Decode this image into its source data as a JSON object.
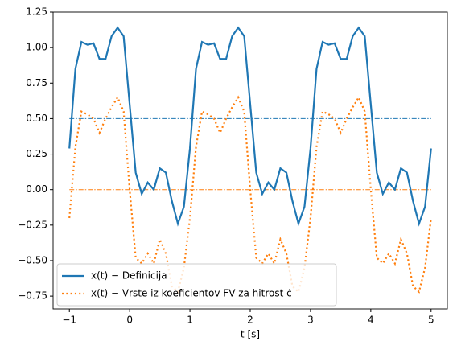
{
  "chart_data": {
    "type": "line",
    "xlabel": "t [s]",
    "x": [
      -1,
      -0.9,
      -0.8,
      -0.7,
      -0.6,
      -0.5,
      -0.4,
      -0.3,
      -0.2,
      -0.1,
      0,
      0.1,
      0.2,
      0.3,
      0.4,
      0.5,
      0.6,
      0.7,
      0.8,
      0.9,
      1,
      1.1,
      1.2,
      1.3,
      1.4,
      1.5,
      1.6,
      1.7,
      1.8,
      1.9,
      2,
      2.1,
      2.2,
      2.3,
      2.4,
      2.5,
      2.6,
      2.7,
      2.8,
      2.9,
      3,
      3.1,
      3.2,
      3.3,
      3.4,
      3.5,
      3.6,
      3.7,
      3.8,
      3.9,
      4,
      4.1,
      4.2,
      4.3,
      4.4,
      4.5,
      4.6,
      4.7,
      4.8,
      4.9,
      5
    ],
    "series": [
      {
        "name": "x(t) − Definicija",
        "color": "#1f77b4",
        "style": "solid",
        "values": [
          0.29,
          0.85,
          1.04,
          1.02,
          1.03,
          0.92,
          0.92,
          1.08,
          1.14,
          1.08,
          0.6,
          0.12,
          -0.03,
          0.05,
          0,
          0.15,
          0.12,
          -0.08,
          -0.24,
          -0.12,
          0.29,
          0.85,
          1.04,
          1.02,
          1.03,
          0.92,
          0.92,
          1.08,
          1.14,
          1.08,
          0.6,
          0.12,
          -0.03,
          0.05,
          0,
          0.15,
          0.12,
          -0.08,
          -0.24,
          -0.12,
          0.29,
          0.85,
          1.04,
          1.02,
          1.03,
          0.92,
          0.92,
          1.08,
          1.14,
          1.08,
          0.6,
          0.12,
          -0.03,
          0.05,
          0,
          0.15,
          0.12,
          -0.08,
          -0.24,
          -0.12,
          0.29
        ]
      },
      {
        "name": "x(t) − Vrste iz koeficientov FV za hitrost ċ",
        "color": "#ff7f0e",
        "style": "dotted",
        "values": [
          -0.2,
          0.3,
          0.55,
          0.53,
          0.5,
          0.4,
          0.5,
          0.58,
          0.65,
          0.55,
          0,
          -0.48,
          -0.52,
          -0.45,
          -0.52,
          -0.35,
          -0.45,
          -0.68,
          -0.72,
          -0.55,
          -0.2,
          0.3,
          0.55,
          0.53,
          0.5,
          0.4,
          0.5,
          0.58,
          0.65,
          0.55,
          0,
          -0.48,
          -0.52,
          -0.45,
          -0.52,
          -0.35,
          -0.45,
          -0.68,
          -0.72,
          -0.55,
          -0.2,
          0.3,
          0.55,
          0.53,
          0.5,
          0.4,
          0.5,
          0.58,
          0.65,
          0.55,
          0,
          -0.48,
          -0.52,
          -0.45,
          -0.52,
          -0.35,
          -0.45,
          -0.68,
          -0.72,
          -0.55,
          -0.2
        ]
      }
    ],
    "hlines": [
      {
        "value": 0.5,
        "color": "#1f77b4"
      },
      {
        "value": 0,
        "color": "#ff7f0e"
      }
    ],
    "xlim": [
      -1.27,
      5.27
    ],
    "ylim": [
      -0.84,
      1.25
    ],
    "xticks": [
      {
        "value": -1,
        "label": "−1"
      },
      0,
      1,
      2,
      3,
      4,
      5
    ],
    "yticks": [
      {
        "value": -0.75,
        "label": "−0.75"
      },
      {
        "value": -0.5,
        "label": "−0.50"
      },
      {
        "value": -0.25,
        "label": "−0.25"
      },
      {
        "value": 0,
        "label": "0.00"
      },
      {
        "value": 0.25,
        "label": "0.25"
      },
      {
        "value": 0.5,
        "label": "0.50"
      },
      {
        "value": 0.75,
        "label": "0.75"
      },
      {
        "value": 1,
        "label": "1.00"
      },
      {
        "value": 1.25,
        "label": "1.25"
      }
    ],
    "legend": "lower left"
  }
}
